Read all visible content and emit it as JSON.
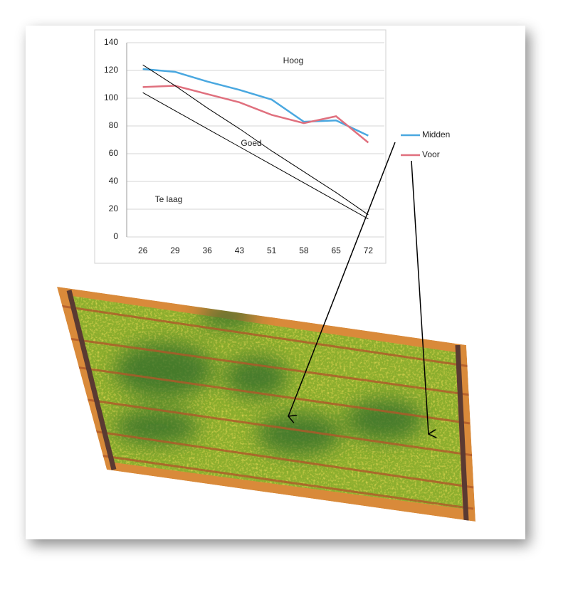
{
  "chart_data": {
    "type": "line",
    "categories": [
      26,
      29,
      36,
      43,
      51,
      58,
      65,
      72
    ],
    "series": [
      {
        "name": "Midden",
        "color": "#4aa8e0",
        "values": [
          121,
          119,
          112,
          106,
          99,
          83,
          84,
          73
        ]
      },
      {
        "name": "Voor",
        "color": "#e0707e",
        "values": [
          108,
          109,
          103,
          97,
          88,
          82,
          87,
          68
        ]
      },
      {
        "color": "#000000",
        "values": [
          124,
          109,
          93,
          78,
          62,
          47,
          32,
          16
        ]
      },
      {
        "color": "#000000",
        "values": [
          104,
          91,
          78,
          65,
          52,
          39,
          26,
          13
        ]
      }
    ],
    "annotations": [
      "Hoog",
      "Goed",
      "Te laag"
    ],
    "ylim": [
      0,
      140
    ],
    "yticks": [
      0,
      20,
      40,
      60,
      80,
      100,
      120,
      140
    ],
    "grid": true,
    "legend": "right"
  }
}
